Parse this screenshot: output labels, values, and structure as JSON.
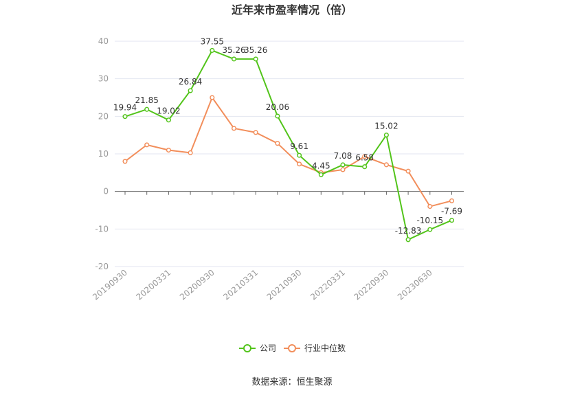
{
  "source_label": "数据来源：恒生聚源",
  "chart_data": {
    "type": "line",
    "title": "近年来市盈率情况（倍）",
    "ylim": [
      -20,
      40
    ],
    "yticks": [
      -20,
      -10,
      0,
      10,
      20,
      30,
      40
    ],
    "grid": true,
    "legend_placement": "bottom-center",
    "x_tick_labels": [
      "20190930",
      "20200331",
      "20200930",
      "20210331",
      "20210930",
      "20220331",
      "20220930",
      "20230630"
    ],
    "series": [
      {
        "name": "公司",
        "color": "#52c41a",
        "values": [
          19.94,
          21.85,
          19.02,
          26.84,
          37.55,
          35.26,
          35.26,
          20.06,
          9.61,
          4.45,
          7.08,
          6.58,
          15.02,
          -12.83,
          -10.15,
          -7.69
        ],
        "labels": [
          "19.94",
          "21.85",
          "19.02",
          "26.84",
          "37.55",
          "35.26",
          "35.26",
          "20.06",
          "9.61",
          "4.45",
          "7.08",
          "6.58",
          "15.02",
          "-12.83",
          "-10.15",
          "-7.69"
        ]
      },
      {
        "name": "行业中位数",
        "color": "#f28e5b",
        "values": [
          8.0,
          12.4,
          11.0,
          10.3,
          25.0,
          16.8,
          15.7,
          12.8,
          7.3,
          5.0,
          5.8,
          9.3,
          7.1,
          5.4,
          -4.0,
          -2.5
        ]
      }
    ]
  }
}
